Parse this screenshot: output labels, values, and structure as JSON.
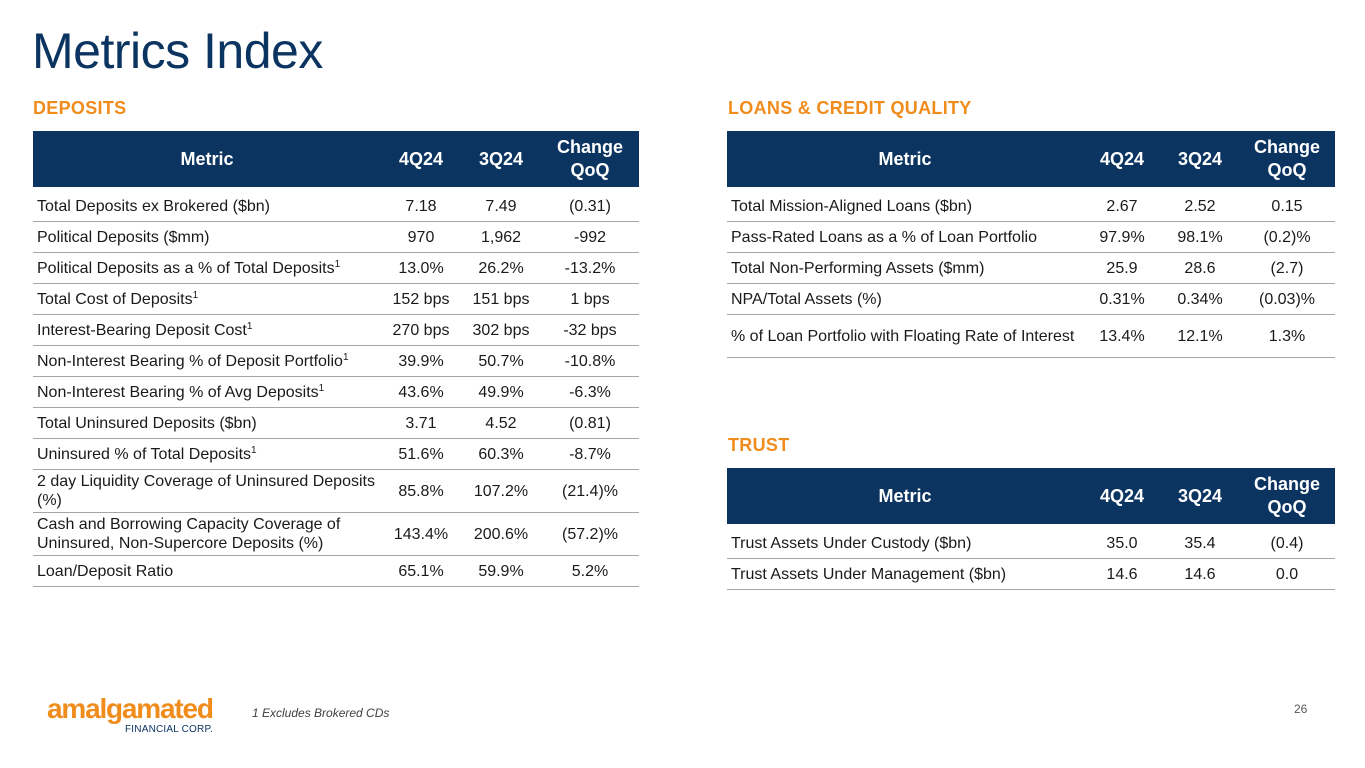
{
  "title": "Metrics Index",
  "colors": {
    "navy": "#0c3461",
    "orange": "#f08c1c"
  },
  "deposits": {
    "label": "DEPOSITS",
    "headers": [
      "Metric",
      "4Q24",
      "3Q24",
      "Change QoQ"
    ],
    "rows": [
      {
        "metric": "Total Deposits ex Brokered ($bn)",
        "sup": "",
        "q4": "7.18",
        "q3": "7.49",
        "chg": "(0.31)"
      },
      {
        "metric": "Political Deposits ($mm)",
        "sup": "",
        "q4": "970",
        "q3": "1,962",
        "chg": "-992"
      },
      {
        "metric": "Political Deposits as a % of Total Deposits",
        "sup": "1",
        "q4": "13.0%",
        "q3": "26.2%",
        "chg": "-13.2%"
      },
      {
        "metric": "Total Cost of Deposits",
        "sup": "1",
        "q4": "152 bps",
        "q3": "151 bps",
        "chg": "1 bps"
      },
      {
        "metric": "Interest-Bearing Deposit Cost",
        "sup": "1",
        "q4": "270 bps",
        "q3": "302 bps",
        "chg": "-32 bps"
      },
      {
        "metric": "Non-Interest Bearing % of Deposit Portfolio",
        "sup": "1",
        "q4": "39.9%",
        "q3": "50.7%",
        "chg": "-10.8%"
      },
      {
        "metric": "Non-Interest Bearing % of Avg Deposits",
        "sup": "1",
        "q4": "43.6%",
        "q3": "49.9%",
        "chg": "-6.3%"
      },
      {
        "metric": "Total Uninsured Deposits ($bn)",
        "sup": "",
        "q4": "3.71",
        "q3": "4.52",
        "chg": "(0.81)"
      },
      {
        "metric": "Uninsured % of Total Deposits",
        "sup": "1",
        "q4": "51.6%",
        "q3": "60.3%",
        "chg": "-8.7%"
      },
      {
        "metric": "2 day Liquidity Coverage of Uninsured Deposits (%)",
        "sup": "",
        "q4": "85.8%",
        "q3": "107.2%",
        "chg": "(21.4)%"
      },
      {
        "metric": "Cash and Borrowing Capacity Coverage of Uninsured, Non-Supercore Deposits (%)",
        "sup": "",
        "q4": "143.4%",
        "q3": "200.6%",
        "chg": "(57.2)%"
      },
      {
        "metric": "Loan/Deposit Ratio",
        "sup": "",
        "q4": "65.1%",
        "q3": "59.9%",
        "chg": "5.2%"
      }
    ]
  },
  "loans": {
    "label": "LOANS & CREDIT QUALITY",
    "headers": [
      "Metric",
      "4Q24",
      "3Q24",
      "Change QoQ"
    ],
    "rows": [
      {
        "metric": "Total Mission-Aligned Loans ($bn)",
        "sup": "",
        "q4": "2.67",
        "q3": "2.52",
        "chg": "0.15"
      },
      {
        "metric": "Pass-Rated Loans as a % of Loan Portfolio",
        "sup": "",
        "q4": "97.9%",
        "q3": "98.1%",
        "chg": "(0.2)%"
      },
      {
        "metric": "Total Non-Performing Assets ($mm)",
        "sup": "",
        "q4": "25.9",
        "q3": "28.6",
        "chg": "(2.7)"
      },
      {
        "metric": "NPA/Total Assets (%)",
        "sup": "",
        "q4": "0.31%",
        "q3": "0.34%",
        "chg": "(0.03)%"
      },
      {
        "metric": "% of Loan Portfolio with Floating Rate of Interest",
        "sup": "",
        "q4": "13.4%",
        "q3": "12.1%",
        "chg": "1.3%"
      }
    ]
  },
  "trust": {
    "label": "TRUST",
    "headers": [
      "Metric",
      "4Q24",
      "3Q24",
      "Change QoQ"
    ],
    "rows": [
      {
        "metric": "Trust Assets Under Custody ($bn)",
        "sup": "",
        "q4": "35.0",
        "q3": "35.4",
        "chg": "(0.4)"
      },
      {
        "metric": "Trust Assets Under Management ($bn)",
        "sup": "",
        "q4": "14.6",
        "q3": "14.6",
        "chg": "0.0"
      }
    ]
  },
  "logo": {
    "main": "amalgamated",
    "sub": "FINANCIAL CORP."
  },
  "footnote": "1 Excludes Brokered CDs",
  "page_number": "26"
}
